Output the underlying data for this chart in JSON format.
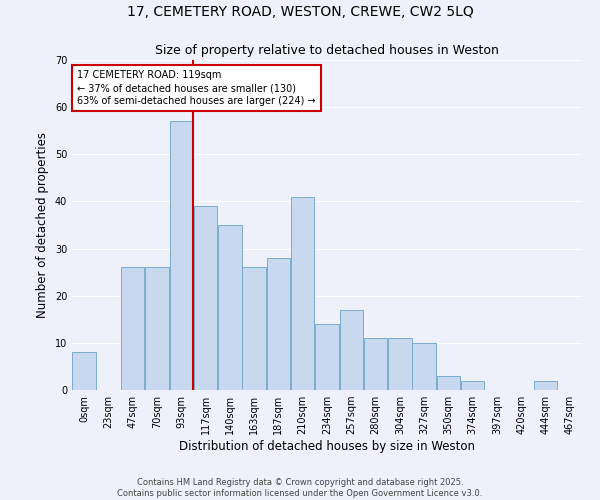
{
  "title": "17, CEMETERY ROAD, WESTON, CREWE, CW2 5LQ",
  "subtitle": "Size of property relative to detached houses in Weston",
  "xlabel": "Distribution of detached houses by size in Weston",
  "ylabel": "Number of detached properties",
  "bar_labels": [
    "0sqm",
    "23sqm",
    "47sqm",
    "70sqm",
    "93sqm",
    "117sqm",
    "140sqm",
    "163sqm",
    "187sqm",
    "210sqm",
    "234sqm",
    "257sqm",
    "280sqm",
    "304sqm",
    "327sqm",
    "350sqm",
    "374sqm",
    "397sqm",
    "420sqm",
    "444sqm",
    "467sqm"
  ],
  "bar_values": [
    8,
    0,
    26,
    26,
    57,
    39,
    35,
    26,
    28,
    41,
    14,
    17,
    11,
    11,
    10,
    3,
    2,
    0,
    0,
    2,
    0
  ],
  "bar_color": "#c8d8ef",
  "bar_edge_color": "#7aadcf",
  "ylim": [
    0,
    70
  ],
  "yticks": [
    0,
    10,
    20,
    30,
    40,
    50,
    60,
    70
  ],
  "red_line_x": 5,
  "annotation_title": "17 CEMETERY ROAD: 119sqm",
  "annotation_line1": "← 37% of detached houses are smaller (130)",
  "annotation_line2": "63% of semi-detached houses are larger (224) →",
  "annotation_box_facecolor": "#ffffff",
  "annotation_border_color": "#cc0000",
  "red_line_color": "#cc0000",
  "footer1": "Contains HM Land Registry data © Crown copyright and database right 2025.",
  "footer2": "Contains public sector information licensed under the Open Government Licence v3.0.",
  "bg_color": "#eef1fa",
  "grid_color": "#ffffff",
  "title_fontsize": 10,
  "subtitle_fontsize": 9,
  "axis_label_fontsize": 8.5,
  "tick_fontsize": 7,
  "footer_fontsize": 6,
  "annotation_fontsize": 7
}
